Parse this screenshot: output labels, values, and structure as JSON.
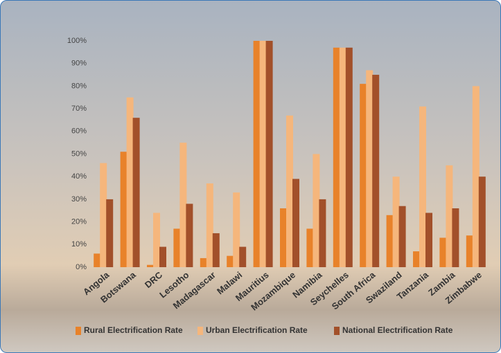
{
  "chart_data": {
    "type": "bar",
    "categories": [
      "Angola",
      "Botswana",
      "DRC",
      "Lesotho",
      "Madagascar",
      "Malawi",
      "Mauritius",
      "Mozambique",
      "Namibia",
      "Seychelles",
      "South Africa",
      "Swaziland",
      "Tanzania",
      "Zambia",
      "Zimbabwe"
    ],
    "series": [
      {
        "name": "Rural Electrification Rate",
        "color": "#e8822a",
        "values": [
          6,
          51,
          1,
          17,
          4,
          5,
          100,
          26,
          17,
          97,
          81,
          23,
          7,
          13,
          14
        ]
      },
      {
        "name": "Urban Electrification Rate",
        "color": "#f5b67c",
        "values": [
          46,
          75,
          24,
          55,
          37,
          33,
          100,
          67,
          50,
          97,
          87,
          40,
          71,
          45,
          80
        ]
      },
      {
        "name": "National Electrification Rate",
        "color": "#a2502a",
        "values": [
          30,
          66,
          9,
          28,
          15,
          9,
          100,
          39,
          30,
          97,
          85,
          27,
          24,
          26,
          40
        ]
      }
    ],
    "ylim": [
      0,
      100
    ],
    "yticks": [
      {
        "value": 0,
        "label": "0%"
      },
      {
        "value": 10,
        "label": "10%"
      },
      {
        "value": 20,
        "label": "20%"
      },
      {
        "value": 30,
        "label": "30%"
      },
      {
        "value": 40,
        "label": "40%"
      },
      {
        "value": 50,
        "label": "50%"
      },
      {
        "value": 60,
        "label": "60%"
      },
      {
        "value": 70,
        "label": "70%"
      },
      {
        "value": 80,
        "label": "80%"
      },
      {
        "value": 90,
        "label": "90%"
      },
      {
        "value": 100,
        "label": "100%"
      }
    ],
    "grid": false
  }
}
